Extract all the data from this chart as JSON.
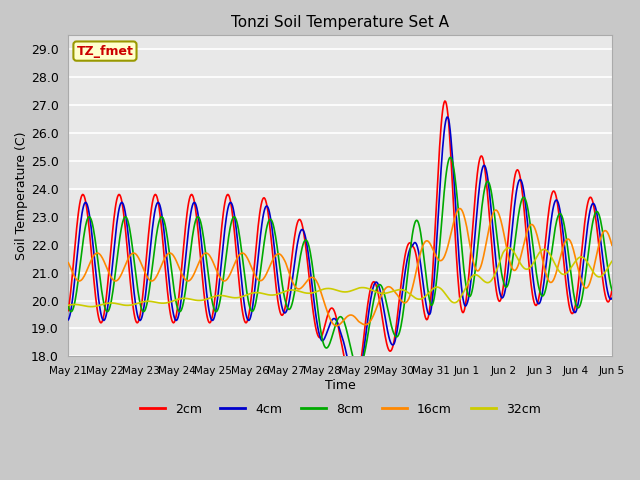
{
  "title": "Tonzi Soil Temperature Set A",
  "xlabel": "Time",
  "ylabel": "Soil Temperature (C)",
  "ylim": [
    18.0,
    29.5
  ],
  "yticks": [
    18.0,
    19.0,
    20.0,
    21.0,
    22.0,
    23.0,
    24.0,
    25.0,
    26.0,
    27.0,
    28.0,
    29.0
  ],
  "annotation_text": "TZ_fmet",
  "annotation_color": "#cc0000",
  "annotation_bg": "#ffffcc",
  "annotation_border": "#999900",
  "colors": {
    "2cm": "#ff0000",
    "4cm": "#0000cc",
    "8cm": "#00aa00",
    "16cm": "#ff8800",
    "32cm": "#cccc00"
  },
  "fig_bg": "#c8c8c8",
  "plot_bg": "#e8e8e8",
  "grid_color": "#ffffff",
  "x_labels": [
    "May 21",
    "May 22",
    "May 23",
    "May 24",
    "May 25",
    "May 26",
    "May 27",
    "May 28",
    "May 29",
    "May 30",
    "May 31",
    "Jun 1",
    "Jun 2",
    "Jun 3",
    "Jun 4",
    "Jun 5"
  ],
  "n_days": 15
}
